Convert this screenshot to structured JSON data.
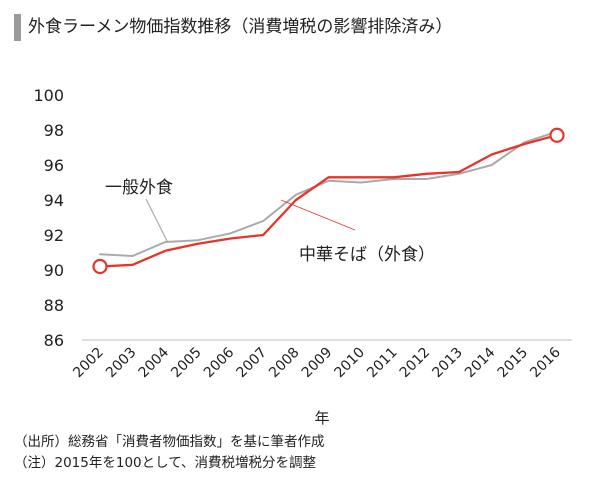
{
  "header": {
    "title": "外食ラーメン物価指数推移（消費増税の影響排除済み）"
  },
  "chart_data": {
    "type": "line",
    "x": [
      "2002",
      "2003",
      "2004",
      "2005",
      "2006",
      "2007",
      "2008",
      "2009",
      "2010",
      "2011",
      "2012",
      "2013",
      "2014",
      "2015",
      "2016"
    ],
    "xlabel": "年",
    "ylabel": "",
    "ylim": [
      86,
      100
    ],
    "yticks": [
      86,
      88,
      90,
      92,
      94,
      96,
      98,
      100
    ],
    "grid": false,
    "series": [
      {
        "name": "一般外食",
        "color": "#aaaaaa",
        "values": [
          90.9,
          90.8,
          91.6,
          91.7,
          92.1,
          92.8,
          94.3,
          95.1,
          95.0,
          95.2,
          95.2,
          95.5,
          96.0,
          97.3,
          97.9
        ]
      },
      {
        "name": "中華そば（外食）",
        "color": "#e8342a",
        "values": [
          90.2,
          90.3,
          91.1,
          91.5,
          91.8,
          92.0,
          94.0,
          95.3,
          95.3,
          95.3,
          95.5,
          95.6,
          96.6,
          97.2,
          97.7
        ]
      }
    ]
  },
  "notes": {
    "line1": "（出所）総務省「消費者物価指数」を基に筆者作成",
    "line2": "（注）2015年を100として、消費税増税分を調整"
  }
}
